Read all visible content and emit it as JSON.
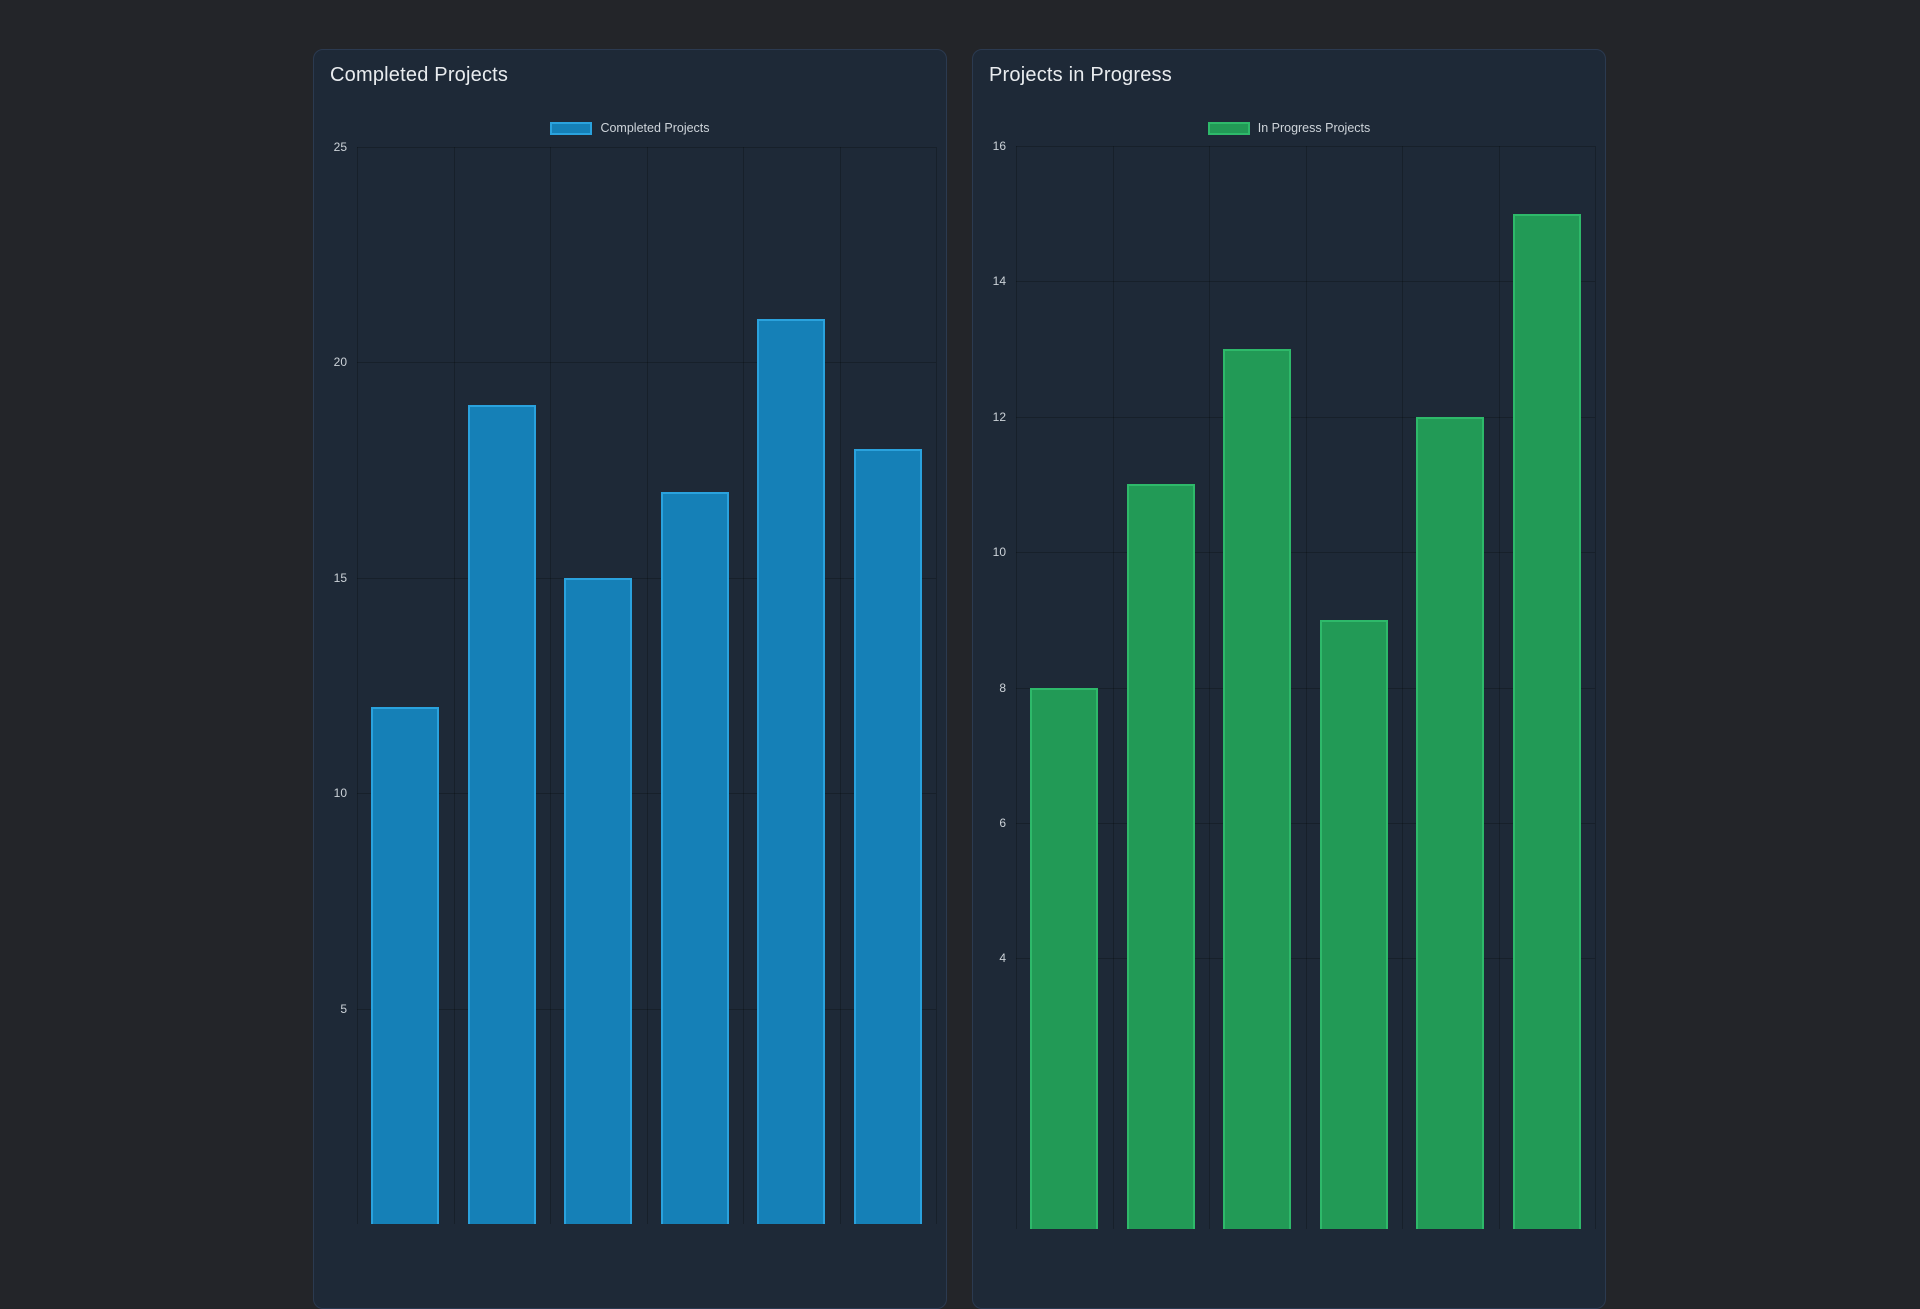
{
  "theme": {
    "page_background": "#232529",
    "card_background": "#1e2937",
    "card_border": "#2b3a50",
    "grid_color": "rgba(0,0,0,0.22)",
    "title_color": "#e9ecef",
    "tick_label_color": "#ccd2d8",
    "legend_label_color": "#ced4da"
  },
  "chart_data": [
    {
      "type": "bar",
      "title": "Completed Projects",
      "legend": [
        "Completed Projects"
      ],
      "legend_position": "top-center",
      "values": [
        12,
        19,
        15,
        17,
        21,
        18
      ],
      "ylim": [
        0,
        25
      ],
      "y_ticks_visible": [
        25,
        20,
        15,
        10,
        5
      ],
      "xlabel": "",
      "ylabel": "",
      "grid": true,
      "x_tick_labels_visible": false,
      "bar_color": "#1580b7",
      "bar_border_color": "#2aa2dd"
    },
    {
      "type": "bar",
      "title": "Projects in Progress",
      "legend": [
        "In Progress Projects"
      ],
      "legend_position": "top-center",
      "values": [
        8,
        11,
        13,
        9,
        12,
        15
      ],
      "ylim": [
        0,
        16
      ],
      "y_ticks_visible": [
        16,
        14,
        12,
        10,
        8,
        6,
        4
      ],
      "xlabel": "",
      "ylabel": "",
      "grid": true,
      "x_tick_labels_visible": false,
      "bar_color": "#229a56",
      "bar_border_color": "#2eb96a"
    }
  ]
}
